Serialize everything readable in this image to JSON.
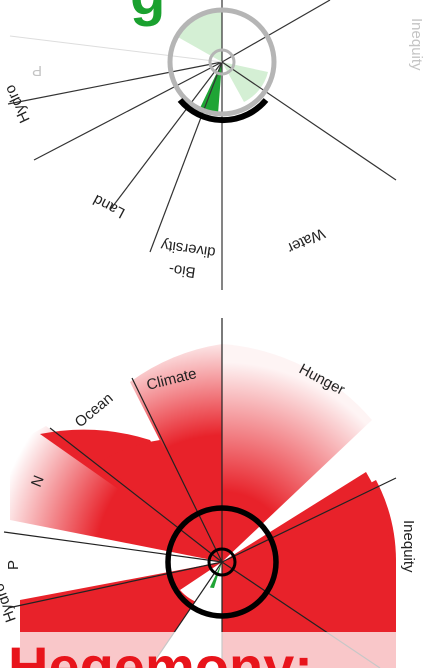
{
  "top_diagram": {
    "title_fragment": "g",
    "labels": {
      "inequity": "Inequity",
      "p": "P",
      "hydro": "Hydro",
      "land": "Land",
      "bio_line1": "Bio-",
      "bio_line2": "diversity",
      "water": "Water"
    }
  },
  "bottom_diagram": {
    "title_fragment": "Hegemony:",
    "labels": {
      "climate": "Climate",
      "hunger": "Hunger",
      "ocean": "Ocean",
      "n": "N",
      "inequity": "Inequity",
      "p": "P",
      "hydro": "Hydro"
    }
  },
  "colors": {
    "green_title": "#1aa12f",
    "red_title": "#e8141b",
    "wedge_red": "#e8222a",
    "wedge_green_light": "#d4efd4",
    "wedge_green_dark": "#1fa535"
  }
}
